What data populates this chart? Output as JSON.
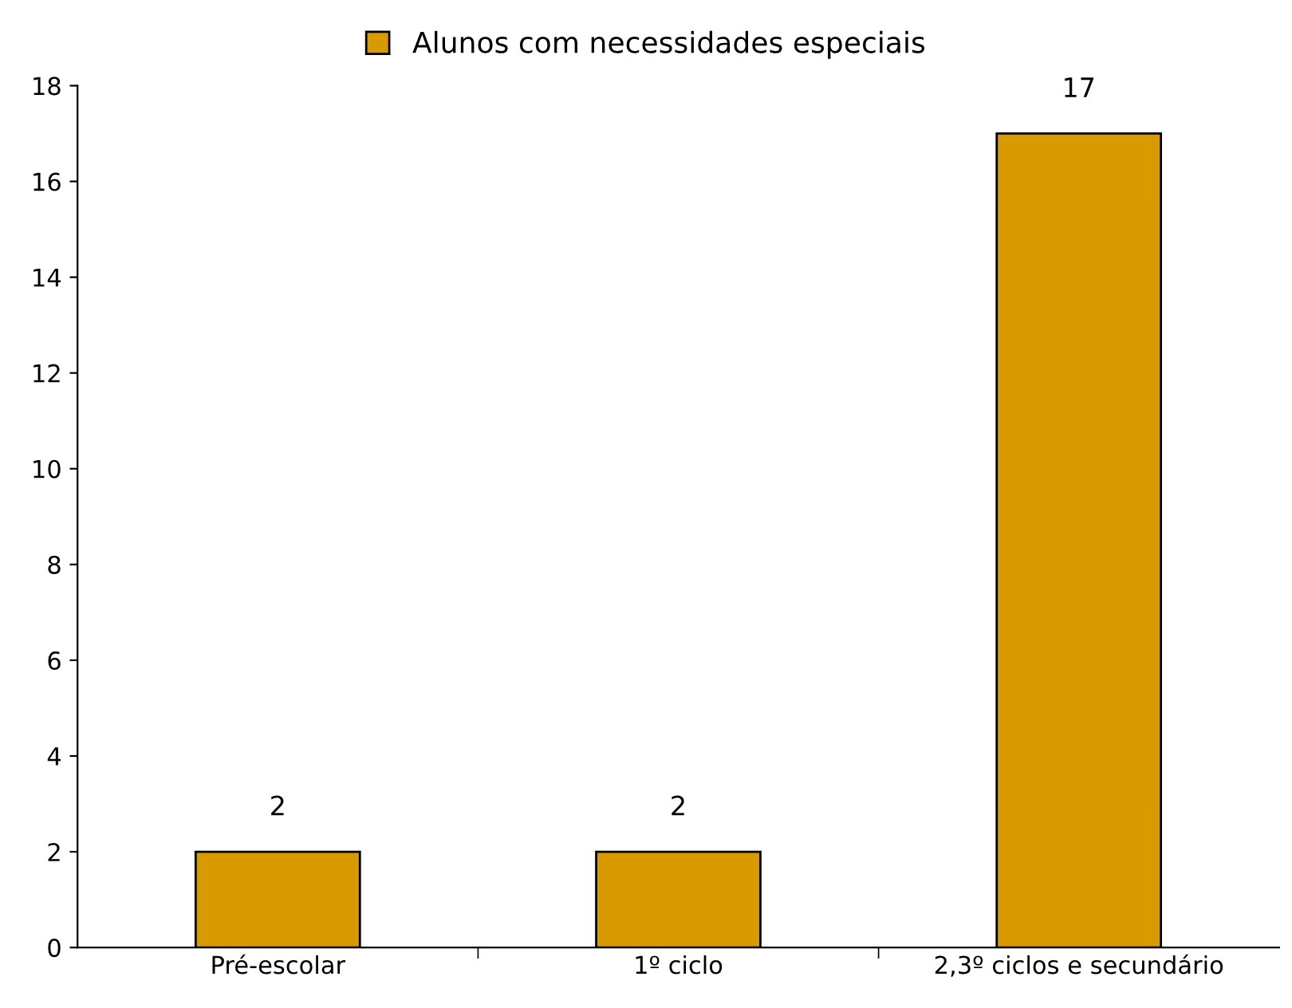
{
  "chart_data": {
    "type": "bar",
    "categories": [
      "Pré-escolar",
      "1º ciclo",
      "2,3º ciclos e secundário"
    ],
    "series": [
      {
        "name": "Alunos com necessidades especiais",
        "color": "#d99a00",
        "values": [
          2,
          2,
          17
        ]
      }
    ],
    "ylim": [
      0,
      18
    ],
    "yticks": [
      0,
      2,
      4,
      6,
      8,
      10,
      12,
      14,
      16,
      18
    ],
    "data_labels": true,
    "grid": false,
    "legend": "top"
  }
}
